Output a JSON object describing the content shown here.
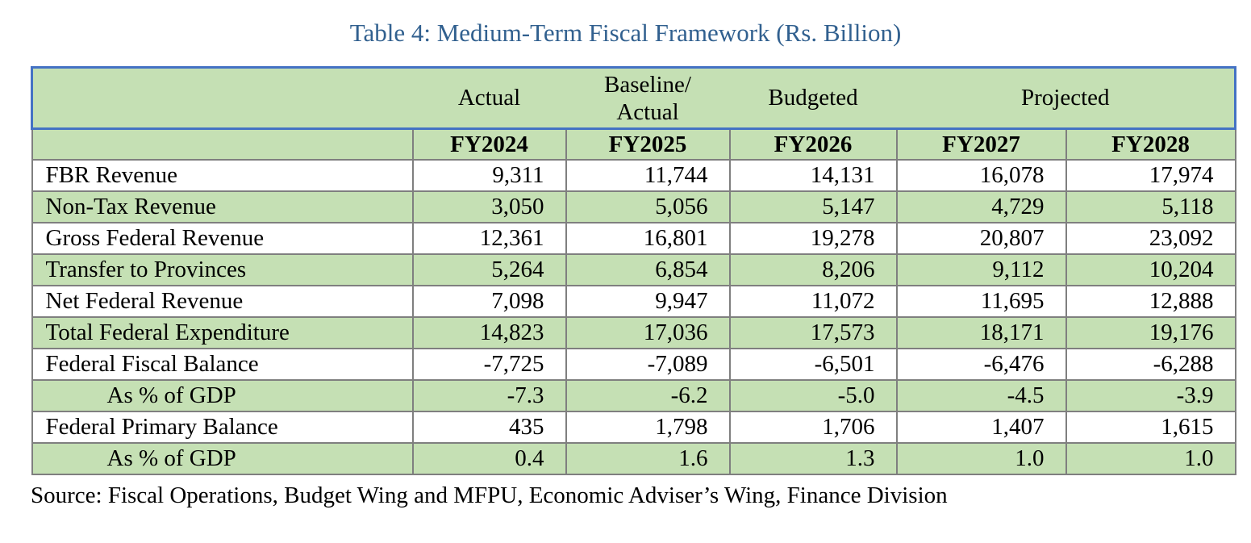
{
  "title": "Table 4: Medium-Term Fiscal Framework (Rs. Billion)",
  "source": "Source: Fiscal Operations, Budget Wing and MFPU, Economic Adviser’s Wing, Finance Division",
  "colors": {
    "header_fill_green": "#C5E0B4",
    "band_border_blue": "#4472C4",
    "grid_border_gray": "#7F7F7F",
    "title_blue": "#31608F",
    "text": "#000000"
  },
  "table": {
    "group_headers": {
      "actual": "Actual",
      "baseline_actual": "Baseline/\nActual",
      "budgeted": "Budgeted",
      "projected": "Projected"
    },
    "year_headers": [
      "FY2024",
      "FY2025",
      "FY2026",
      "FY2027",
      "FY2028"
    ],
    "rows": [
      {
        "label": "FBR Revenue",
        "values": [
          "9,311",
          "11,744",
          "14,131",
          "16,078",
          "17,974"
        ]
      },
      {
        "label": "Non-Tax Revenue",
        "values": [
          "3,050",
          "5,056",
          "5,147",
          "4,729",
          "5,118"
        ]
      },
      {
        "label": "Gross Federal Revenue",
        "values": [
          "12,361",
          "16,801",
          "19,278",
          "20,807",
          "23,092"
        ]
      },
      {
        "label": "Transfer to Provinces",
        "values": [
          "5,264",
          "6,854",
          "8,206",
          "9,112",
          "10,204"
        ]
      },
      {
        "label": "Net Federal Revenue",
        "values": [
          "7,098",
          "9,947",
          "11,072",
          "11,695",
          "12,888"
        ]
      },
      {
        "label": "Total Federal Expenditure",
        "values": [
          "14,823",
          "17,036",
          "17,573",
          "18,171",
          "19,176"
        ]
      },
      {
        "label": "Federal Fiscal Balance",
        "values": [
          "-7,725",
          "-7,089",
          "-6,501",
          "-6,476",
          "-6,288"
        ]
      },
      {
        "label": "As % of GDP",
        "values": [
          "-7.3",
          "-6.2",
          "-5.0",
          "-4.5",
          "-3.9"
        ]
      },
      {
        "label": "Federal Primary Balance",
        "values": [
          "435",
          "1,798",
          "1,706",
          "1,407",
          "1,615"
        ]
      },
      {
        "label": "As % of GDP",
        "values": [
          "0.4",
          "1.6",
          "1.3",
          "1.0",
          "1.0"
        ]
      }
    ]
  }
}
